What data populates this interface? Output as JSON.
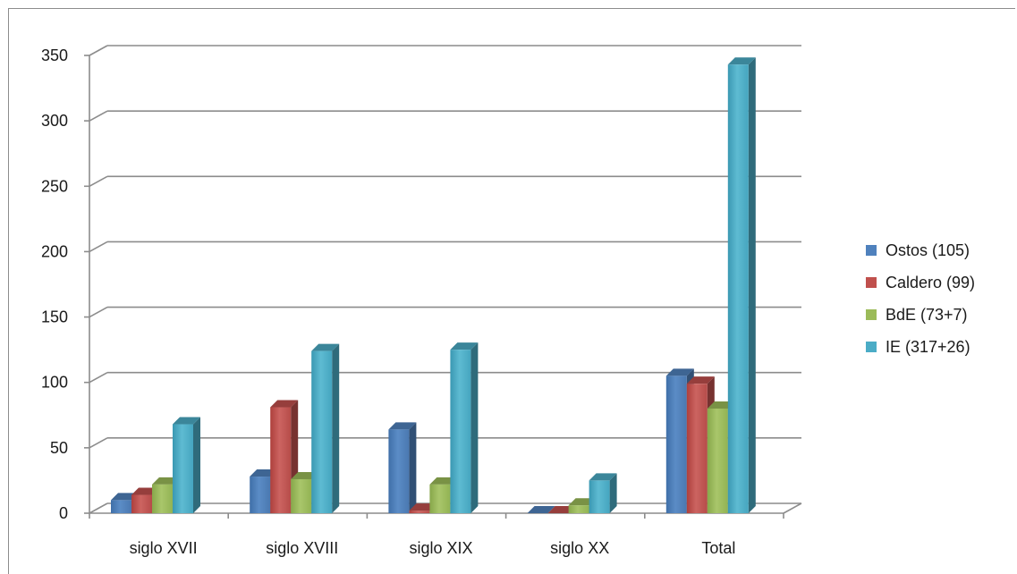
{
  "chart_data": {
    "type": "bar",
    "title": "",
    "xlabel": "",
    "ylabel": "",
    "categories": [
      "siglo XVII",
      "siglo XVIII",
      "siglo XIX",
      "siglo XX",
      "Total"
    ],
    "ylim": [
      0,
      350
    ],
    "yticks": [
      0,
      50,
      100,
      150,
      200,
      250,
      300,
      350
    ],
    "grid": true,
    "legend_position": "right",
    "style": "3d-clustered-column",
    "series": [
      {
        "name": "Ostos (105)",
        "color": "#4f81bd",
        "values": [
          10,
          28,
          64,
          0,
          105
        ]
      },
      {
        "name": "Caldero (99)",
        "color": "#c0504d",
        "values": [
          14,
          81,
          2,
          0,
          99
        ]
      },
      {
        "name": "BdE (73+7)",
        "color": "#9bbb59",
        "values": [
          22,
          26,
          22,
          6,
          80
        ]
      },
      {
        "name": "IE (317+26)",
        "color": "#4bacc6",
        "values": [
          68,
          124,
          125,
          25,
          343
        ]
      }
    ]
  }
}
